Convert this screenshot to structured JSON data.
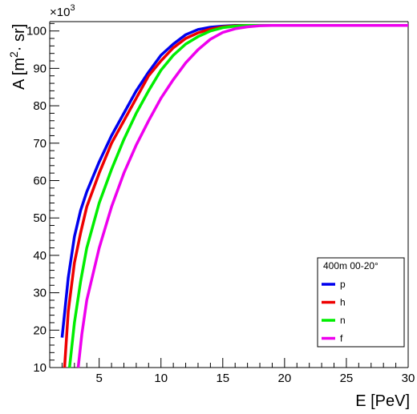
{
  "chart_data": {
    "type": "line",
    "xlabel": "E [PeV]",
    "ylabel_main": "A [m",
    "ylabel_sup": "2",
    "ylabel_rest": "· sr]",
    "y_multiplier_base": "×10",
    "y_multiplier_exp": "3",
    "xlim": [
      1,
      30
    ],
    "ylim": [
      10,
      102.5
    ],
    "x_ticks": [
      5,
      10,
      15,
      20,
      25,
      30
    ],
    "y_ticks": [
      10,
      20,
      30,
      40,
      50,
      60,
      70,
      80,
      90,
      100
    ],
    "grid": false,
    "legend": {
      "placement": "bottom-right",
      "title": "400m 00-20°"
    },
    "series": [
      {
        "name": "p",
        "color": "#0000ee",
        "x": [
          2,
          2.5,
          3,
          3.5,
          4,
          5,
          6,
          7,
          8,
          9,
          10,
          11,
          12,
          13,
          14,
          15,
          16,
          17,
          20,
          25,
          30
        ],
        "y": [
          18,
          34,
          45,
          52,
          57,
          65,
          72,
          78,
          84,
          89,
          93.5,
          96.5,
          99,
          100.4,
          101,
          101.3,
          101.5,
          101.5,
          101.5,
          101.5,
          101.5
        ]
      },
      {
        "name": "h",
        "color": "#ee0000",
        "x": [
          2.2,
          2.5,
          3,
          3.5,
          4,
          5,
          6,
          7,
          8,
          9,
          10,
          11,
          12,
          13,
          14,
          15,
          16,
          17,
          18,
          20,
          25,
          30
        ],
        "y": [
          10,
          25,
          38,
          46,
          53,
          62,
          70,
          76,
          82,
          88,
          92,
          95.5,
          98,
          99.5,
          100.5,
          101.1,
          101.4,
          101.5,
          101.5,
          101.5,
          101.5,
          101.5
        ]
      },
      {
        "name": "n",
        "color": "#00ee00",
        "x": [
          2.6,
          3,
          3.5,
          4,
          5,
          6,
          7,
          8,
          9,
          10,
          11,
          12,
          13,
          14,
          15,
          16,
          17,
          18,
          20,
          25,
          30
        ],
        "y": [
          10,
          22,
          33,
          42,
          54,
          63,
          71,
          78,
          84,
          89.5,
          93.5,
          96.5,
          98.5,
          100,
          100.9,
          101.3,
          101.5,
          101.5,
          101.5,
          101.5,
          101.5
        ]
      },
      {
        "name": "f",
        "color": "#ee00ee",
        "x": [
          3.3,
          3.6,
          4,
          5,
          6,
          7,
          8,
          9,
          10,
          11,
          12,
          13,
          14,
          15,
          16,
          17,
          18,
          19,
          20,
          25,
          30
        ],
        "y": [
          10,
          19,
          28,
          42,
          53,
          62,
          69.5,
          76,
          82,
          87,
          91.5,
          95,
          97.8,
          99.6,
          100.6,
          101.1,
          101.4,
          101.5,
          101.5,
          101.5,
          101.5
        ]
      }
    ]
  }
}
